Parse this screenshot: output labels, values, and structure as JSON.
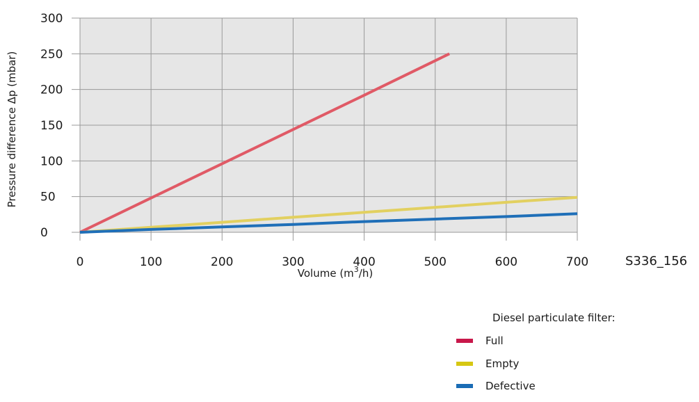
{
  "chart_data": {
    "type": "line",
    "x": [
      0,
      100,
      200,
      300,
      400,
      500,
      600,
      700
    ],
    "xlim": [
      0,
      700
    ],
    "ylim": [
      0,
      300
    ],
    "xticks": [
      0,
      100,
      200,
      300,
      400,
      500,
      600,
      700
    ],
    "yticks": [
      0,
      50,
      100,
      150,
      200,
      250,
      300
    ],
    "xtick_labels": [
      "0",
      "100",
      "200",
      "300",
      "400",
      "500",
      "600",
      "700"
    ],
    "ytick_labels": [
      "0",
      "50",
      "100",
      "150",
      "200",
      "250",
      "300"
    ],
    "xlabel": "Volume (m³/h)",
    "ylabel": "Pressure difference Δp (mbar)",
    "figure_id": "S336_156",
    "grid": true,
    "plot_background": "#e6e6e6",
    "grid_color": "#999999",
    "legend_title": "Diesel particulate filter:",
    "legend_position": "bottom-right",
    "series": [
      {
        "name": "Full",
        "color": "#e05a66",
        "legend_color": "#c8174a",
        "points": [
          [
            0,
            0
          ],
          [
            100,
            48
          ],
          [
            200,
            96
          ],
          [
            300,
            144
          ],
          [
            400,
            192
          ],
          [
            520,
            250
          ]
        ]
      },
      {
        "name": "Empty",
        "color": "#e2d060",
        "legend_color": "#d6c712",
        "points": [
          [
            0,
            0
          ],
          [
            100,
            7
          ],
          [
            200,
            14
          ],
          [
            300,
            21
          ],
          [
            400,
            28
          ],
          [
            500,
            35
          ],
          [
            600,
            42
          ],
          [
            700,
            49
          ]
        ]
      },
      {
        "name": "Defective",
        "color": "#1f6fb8",
        "legend_color": "#1a6cb5",
        "points": [
          [
            0,
            0
          ],
          [
            100,
            4
          ],
          [
            200,
            7.5
          ],
          [
            300,
            11
          ],
          [
            400,
            15
          ],
          [
            500,
            18.5
          ],
          [
            600,
            22
          ],
          [
            700,
            26
          ]
        ]
      }
    ]
  }
}
